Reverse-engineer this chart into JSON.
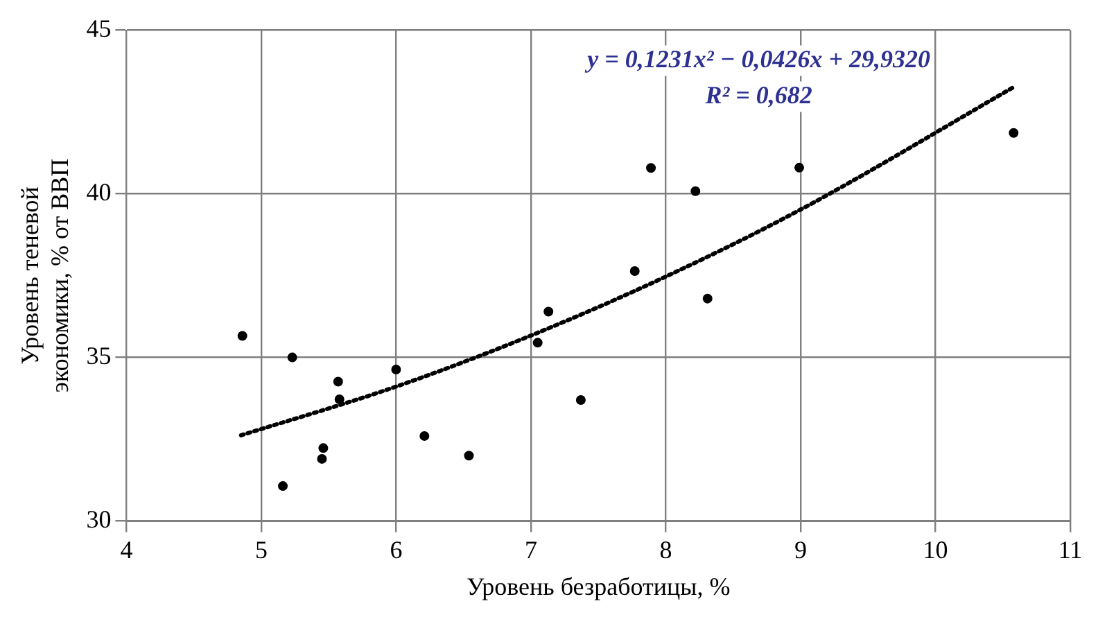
{
  "chart_data": {
    "type": "scatter",
    "xlabel": "Уровень безработицы, %",
    "ylabel": "Уровень теневой\nэкономики, % от ВВП",
    "annotations": [
      "y = 0,1231x² − 0,0426x + 29,9320",
      "R² = 0,682"
    ],
    "xlim": [
      4,
      11
    ],
    "xticks": [
      4,
      5,
      6,
      7,
      8,
      9,
      10,
      11
    ],
    "ylim": [
      30,
      45
    ],
    "yticks": [
      30,
      35,
      40,
      45
    ],
    "grid": true,
    "legend": false,
    "marker": "circle",
    "series": [
      {
        "color": "#000000",
        "x": [
          4.86,
          5.23,
          5.57,
          5.58,
          6.0,
          5.46,
          5.45,
          5.16,
          6.21,
          6.54,
          7.05,
          7.13,
          7.37,
          7.77,
          7.89,
          8.22,
          8.31,
          8.99,
          10.58
        ],
        "values": [
          35.66,
          35.0,
          34.26,
          33.72,
          34.63,
          32.23,
          31.9,
          31.07,
          32.6,
          32.0,
          35.45,
          36.4,
          33.7,
          37.64,
          40.79,
          40.08,
          36.8,
          40.8,
          41.86
        ]
      },
      {
        "type": "line",
        "color": "#000000",
        "marker": "none",
        "line_style": "dotted",
        "x": [
          4.85,
          6,
          7,
          8,
          9,
          10.58
        ],
        "values": [
          32.62,
          34.11,
          35.67,
          37.47,
          39.52,
          43.26
        ]
      }
    ]
  }
}
